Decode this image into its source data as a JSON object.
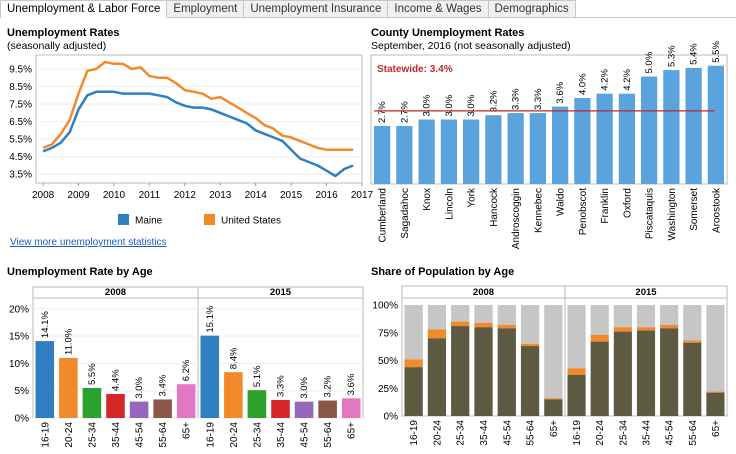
{
  "tabs": [
    "Unemployment & Labor Force",
    "Employment",
    "Unemployment Insurance",
    "Income & Wages",
    "Demographics"
  ],
  "colors": {
    "maine": "#2f7fc1",
    "us": "#f2892a",
    "bar_blue": "#5ba3dc",
    "statewide_line": "#c1272d",
    "pop_dark": "#5e5a41",
    "pop_light": "#c6c6c6",
    "pop_orange": "#f2892a",
    "age_colors": [
      "#2f7fc1",
      "#f2892a",
      "#2ca02c",
      "#d62728",
      "#9467bd",
      "#8c564b",
      "#e377c2"
    ]
  },
  "panel1": {
    "title": "Unemployment Rates",
    "subtitle": "(seasonally adjusted)",
    "link": "View more unemployment statistics"
  },
  "panel2": {
    "title": "County Unemployment Rates",
    "subtitle": "September, 2016 (not seasonally adjusted)"
  },
  "panel3": {
    "title": "Unemployment Rate by Age"
  },
  "panel4": {
    "title": "Share of Population by Age"
  },
  "chart_data": [
    {
      "type": "line",
      "x": [
        2008.0,
        2008.25,
        2008.5,
        2008.75,
        2009.0,
        2009.25,
        2009.5,
        2009.75,
        2010.0,
        2010.25,
        2010.5,
        2010.75,
        2011.0,
        2011.25,
        2011.5,
        2011.75,
        2012.0,
        2012.25,
        2012.5,
        2012.75,
        2013.0,
        2013.25,
        2013.5,
        2013.75,
        2014.0,
        2014.25,
        2014.5,
        2014.75,
        2015.0,
        2015.25,
        2015.5,
        2015.75,
        2016.0,
        2016.25,
        2016.5,
        2016.75
      ],
      "series": [
        {
          "name": "Maine",
          "values": [
            4.8,
            5.0,
            5.3,
            5.9,
            7.2,
            8.0,
            8.2,
            8.2,
            8.2,
            8.1,
            8.1,
            8.1,
            8.1,
            8.0,
            7.9,
            7.6,
            7.4,
            7.3,
            7.3,
            7.2,
            7.0,
            6.8,
            6.6,
            6.4,
            6.0,
            5.8,
            5.6,
            5.4,
            4.9,
            4.4,
            4.2,
            4.0,
            3.7,
            3.4,
            3.8,
            4.0
          ]
        },
        {
          "name": "United States",
          "values": [
            5.0,
            5.2,
            5.8,
            6.6,
            8.1,
            9.4,
            9.5,
            9.9,
            9.8,
            9.8,
            9.5,
            9.6,
            9.1,
            9.0,
            9.0,
            8.7,
            8.3,
            8.2,
            8.1,
            7.8,
            7.9,
            7.6,
            7.3,
            7.0,
            6.7,
            6.3,
            6.1,
            5.7,
            5.6,
            5.4,
            5.2,
            5.0,
            4.9,
            4.9,
            4.9,
            4.9
          ]
        }
      ],
      "xticks": [
        "2008",
        "2009",
        "2010",
        "2011",
        "2012",
        "2013",
        "2014",
        "2015",
        "2016",
        "2017"
      ],
      "yticks": [
        "3.5%",
        "4.5%",
        "5.5%",
        "6.5%",
        "7.5%",
        "8.5%",
        "9.5%"
      ],
      "xlim": [
        2007.8,
        2017.0
      ],
      "ylim": [
        3.0,
        10.3
      ],
      "legend": "bottom"
    },
    {
      "type": "bar",
      "categories": [
        "Cumberland",
        "Sagadahoc",
        "Knox",
        "Lincoln",
        "York",
        "Hancock",
        "Androscoggin",
        "Kennebec",
        "Waldo",
        "Penobscot",
        "Franklin",
        "Oxford",
        "Piscataquis",
        "Washington",
        "Somerset",
        "Aroostook"
      ],
      "values": [
        2.7,
        2.7,
        3.0,
        3.0,
        3.0,
        3.2,
        3.3,
        3.3,
        3.6,
        4.0,
        4.2,
        4.2,
        5.0,
        5.3,
        5.4,
        5.5
      ],
      "labels": [
        "2.7%",
        "2.7%",
        "3.0%",
        "3.0%",
        "3.0%",
        "3.2%",
        "3.3%",
        "3.3%",
        "3.6%",
        "4.0%",
        "4.2%",
        "4.2%",
        "5.0%",
        "5.3%",
        "5.4%",
        "5.5%"
      ],
      "reference_line": {
        "label": "Statewide: 3.4%",
        "value": 3.4
      },
      "ylim": [
        0,
        6.0
      ]
    },
    {
      "type": "bar",
      "panels": [
        {
          "title": "2008",
          "categories": [
            "16-19",
            "20-24",
            "25-34",
            "35-44",
            "45-54",
            "55-64",
            "65+"
          ],
          "values": [
            14.1,
            11.0,
            5.5,
            4.4,
            3.0,
            3.4,
            6.2
          ],
          "labels": [
            "14.1%",
            "11.0%",
            "5.5%",
            "4.4%",
            "3.0%",
            "3.4%",
            "6.2%"
          ]
        },
        {
          "title": "2015",
          "categories": [
            "16-19",
            "20-24",
            "25-34",
            "35-44",
            "45-54",
            "55-64",
            "65+"
          ],
          "values": [
            15.1,
            8.4,
            5.1,
            3.3,
            3.0,
            3.2,
            3.6
          ],
          "labels": [
            "15.1%",
            "8.4%",
            "5.1%",
            "3.3%",
            "3.0%",
            "3.2%",
            "3.6%"
          ]
        }
      ],
      "yticks": [
        "0%",
        "5%",
        "10%",
        "15%",
        "20%"
      ],
      "ylim": [
        0,
        22
      ]
    },
    {
      "type": "bar",
      "stacked": true,
      "panels": [
        {
          "title": "2008",
          "categories": [
            "16-19",
            "20-24",
            "25-34",
            "35-44",
            "45-54",
            "55-64",
            "65+"
          ],
          "employed": [
            44,
            70,
            81,
            80,
            79,
            63,
            15
          ],
          "unemployed": [
            7,
            8,
            4,
            4,
            3,
            2,
            1
          ]
        },
        {
          "title": "2015",
          "categories": [
            "16-19",
            "20-24",
            "25-34",
            "35-44",
            "45-54",
            "55-64",
            "65+"
          ],
          "employed": [
            37,
            67,
            76,
            77,
            79,
            66,
            21
          ],
          "unemployed": [
            6,
            6,
            4,
            3,
            3,
            2,
            1
          ]
        }
      ],
      "yticks": [
        "0%",
        "25%",
        "50%",
        "75%",
        "100%"
      ],
      "ylim": [
        0,
        100
      ]
    }
  ]
}
